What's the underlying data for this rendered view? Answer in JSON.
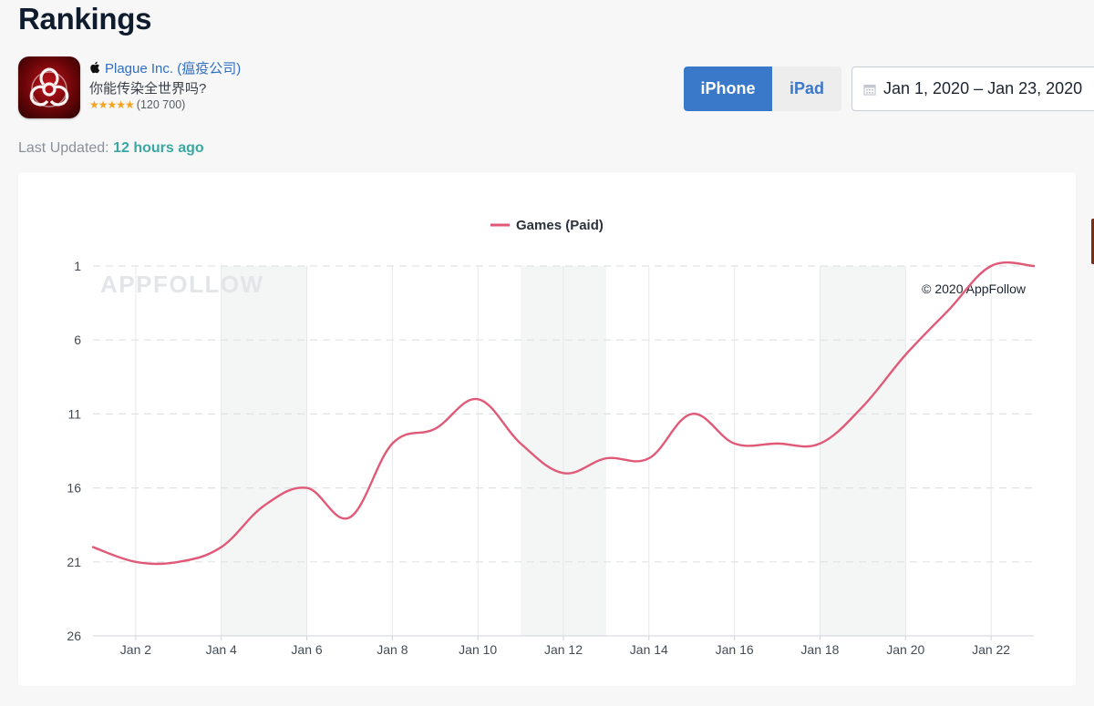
{
  "page": {
    "title": "Rankings"
  },
  "app": {
    "name": "Plague Inc. (瘟疫公司)",
    "subtitle": "你能传染全世界吗?",
    "stars": "★★★★★",
    "rating_count": "(120 700)",
    "platform_icon": "apple-icon",
    "icon": "biohazard-app-icon"
  },
  "device_toggle": {
    "options": [
      "iPhone",
      "iPad"
    ],
    "selected": "iPhone"
  },
  "date_range": {
    "value": "Jan 1, 2020 – Jan 23, 2020",
    "icon": "calendar-icon"
  },
  "last_updated": {
    "label": "Last Updated:",
    "value": "12 hours ago"
  },
  "colors": {
    "accent": "#3a78c9",
    "series": "#e05a78",
    "updated": "#3aa8a0",
    "stars": "#f4a321"
  },
  "chart_data": {
    "type": "line",
    "title": "",
    "watermark": "APPFOLLOW",
    "copyright": "© 2020 AppFollow",
    "legend_position": "top-center",
    "ylabel": "",
    "xlabel": "",
    "y_reversed": true,
    "ylim": [
      1,
      26
    ],
    "y_ticks": [
      1,
      6,
      11,
      16,
      21,
      26
    ],
    "x_domain": [
      "2020-01-01",
      "2020-01-23"
    ],
    "x_tick_labels": [
      "Jan 2",
      "Jan 4",
      "Jan 6",
      "Jan 8",
      "Jan 10",
      "Jan 12",
      "Jan 14",
      "Jan 16",
      "Jan 18",
      "Jan 20",
      "Jan 22"
    ],
    "x_tick_dates": [
      "2020-01-02",
      "2020-01-04",
      "2020-01-06",
      "2020-01-08",
      "2020-01-10",
      "2020-01-12",
      "2020-01-14",
      "2020-01-16",
      "2020-01-18",
      "2020-01-20",
      "2020-01-22"
    ],
    "weekend_bands": [
      [
        "2020-01-04",
        "2020-01-06"
      ],
      [
        "2020-01-11",
        "2020-01-13"
      ],
      [
        "2020-01-18",
        "2020-01-20"
      ]
    ],
    "grid": true,
    "series": [
      {
        "name": "Games (Paid)",
        "color": "#e05a78",
        "points": [
          {
            "x": "2020-01-01",
            "y": 20
          },
          {
            "x": "2020-01-02",
            "y": 21
          },
          {
            "x": "2020-01-03",
            "y": 21
          },
          {
            "x": "2020-01-04",
            "y": 20
          },
          {
            "x": "2020-01-05",
            "y": 17.2
          },
          {
            "x": "2020-01-06",
            "y": 16
          },
          {
            "x": "2020-01-07",
            "y": 18
          },
          {
            "x": "2020-01-08",
            "y": 13
          },
          {
            "x": "2020-01-09",
            "y": 12
          },
          {
            "x": "2020-01-10",
            "y": 10
          },
          {
            "x": "2020-01-11",
            "y": 13
          },
          {
            "x": "2020-01-12",
            "y": 15
          },
          {
            "x": "2020-01-13",
            "y": 14
          },
          {
            "x": "2020-01-14",
            "y": 14
          },
          {
            "x": "2020-01-15",
            "y": 11
          },
          {
            "x": "2020-01-16",
            "y": 13
          },
          {
            "x": "2020-01-17",
            "y": 13
          },
          {
            "x": "2020-01-18",
            "y": 13
          },
          {
            "x": "2020-01-19",
            "y": 10.5
          },
          {
            "x": "2020-01-20",
            "y": 7
          },
          {
            "x": "2020-01-21",
            "y": 4
          },
          {
            "x": "2020-01-22",
            "y": 1
          },
          {
            "x": "2020-01-23",
            "y": 1
          }
        ]
      }
    ]
  }
}
